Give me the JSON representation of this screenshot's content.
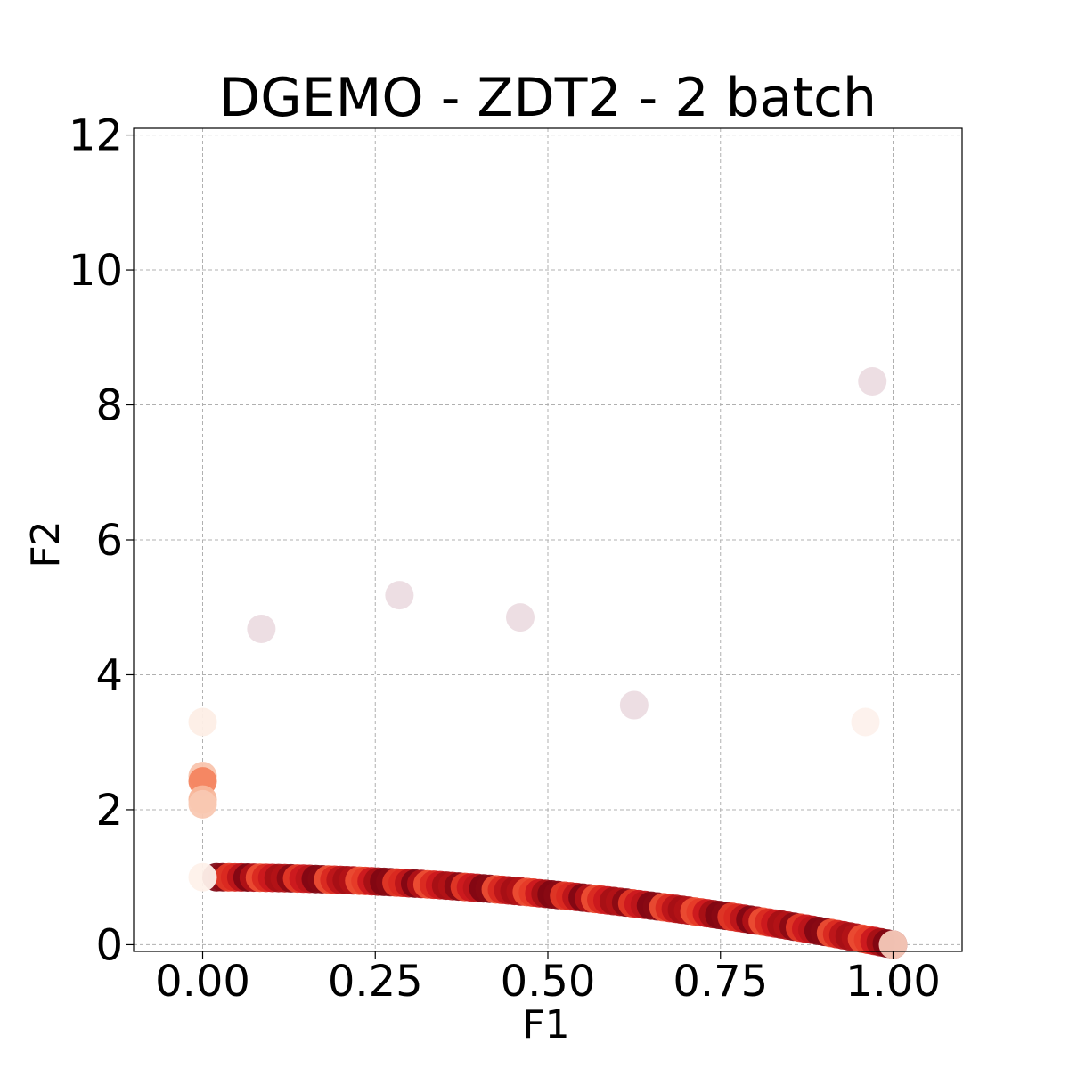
{
  "chart_data": {
    "type": "scatter",
    "title": "DGEMO - ZDT2 - 2 batch",
    "xlabel": "F1",
    "ylabel": "F2",
    "xlim": [
      -0.1,
      1.1
    ],
    "ylim": [
      -0.1,
      12.1
    ],
    "xticks": [
      0.0,
      0.25,
      0.5,
      0.75,
      1.0
    ],
    "xtick_labels": [
      "0.00",
      "0.25",
      "0.50",
      "0.75",
      "1.00"
    ],
    "yticks": [
      0,
      2,
      4,
      6,
      8,
      10,
      12
    ],
    "ytick_labels": [
      "0",
      "2",
      "4",
      "6",
      "8",
      "10",
      "12"
    ],
    "grid": true,
    "colormap": "Reds (lighter = earlier evaluations, darker = later)",
    "outliers": [
      {
        "x": 0.0,
        "y": 3.3,
        "color": "#fdeee6"
      },
      {
        "x": 0.0,
        "y": 2.5,
        "color": "#f9c4ad"
      },
      {
        "x": 0.0,
        "y": 2.42,
        "color": "#f4845f"
      },
      {
        "x": 0.0,
        "y": 2.15,
        "color": "#f8b79b"
      },
      {
        "x": 0.0,
        "y": 2.08,
        "color": "#f9c8b2"
      },
      {
        "x": 0.0,
        "y": 1.0,
        "color": "#fef1ea"
      },
      {
        "x": 0.085,
        "y": 4.68,
        "color": "#ecdce2"
      },
      {
        "x": 0.285,
        "y": 5.18,
        "color": "#ecdce2"
      },
      {
        "x": 0.46,
        "y": 4.85,
        "color": "#ecdce2"
      },
      {
        "x": 0.625,
        "y": 3.55,
        "color": "#ecdce2"
      },
      {
        "x": 0.96,
        "y": 3.3,
        "color": "#fdf1ec"
      },
      {
        "x": 0.97,
        "y": 8.35,
        "color": "#ecdce2"
      }
    ],
    "front": {
      "x_start": 0.02,
      "x_end": 1.0,
      "count": 110,
      "relation": "F2 = 1 - F1^2",
      "palette": [
        "#7f0712",
        "#a50f15",
        "#bb151a",
        "#cb181d",
        "#d9281f",
        "#e53a27",
        "#ef4f34",
        "#8a0a14",
        "#b31217"
      ]
    }
  }
}
